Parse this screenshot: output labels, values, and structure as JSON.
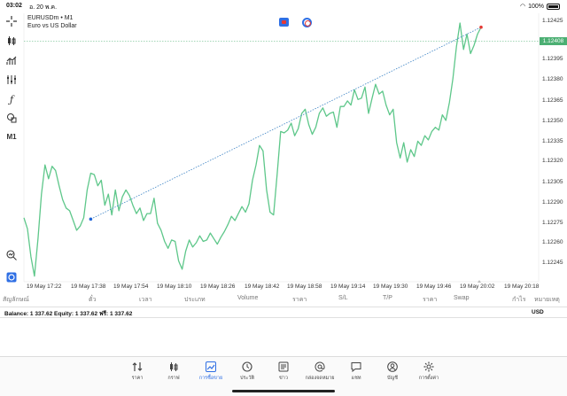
{
  "status_bar": {
    "time": "03:02",
    "date": "อ. 20 พ.ค.",
    "battery": "100%"
  },
  "symbol": {
    "name": "EURUSDm • M1",
    "description": "Euro vs US Dollar"
  },
  "toolbar": {
    "timeframe": "M1"
  },
  "colors": {
    "price_line": "#5ec78a",
    "accent": "#2f6fe4",
    "current_price_bg": "#4caf73",
    "trend_line": "#3b82c4"
  },
  "chart_data": {
    "type": "line",
    "price_axis_labels": [
      "1.12425",
      "1.12395",
      "1.12380",
      "1.12365",
      "1.12350",
      "1.12335",
      "1.12320",
      "1.12305",
      "1.12290",
      "1.12275",
      "1.12260",
      "1.12245"
    ],
    "current_price": "1.12408",
    "time_axis_labels": [
      "19 May 17:22",
      "19 May 17:38",
      "19 May 17:54",
      "19 May 18:10",
      "19 May 18:26",
      "19 May 18:42",
      "19 May 18:58",
      "19 May 19:14",
      "19 May 19:30",
      "19 May 19:46",
      "19 May 20:02",
      "19 May 20:18"
    ],
    "ylim": [
      1.12237,
      1.1243
    ],
    "series": [
      {
        "values": [
          1.12283,
          1.12275,
          1.12255,
          1.12241,
          1.12268,
          1.123,
          1.12321,
          1.12311,
          1.1232,
          1.12317,
          1.12306,
          1.12296,
          1.1229,
          1.12288,
          1.12281,
          1.12274,
          1.12277,
          1.12283,
          1.12303,
          1.12315,
          1.12314,
          1.12306,
          1.1231,
          1.12292,
          1.123,
          1.12285,
          1.12303,
          1.12288,
          1.12298,
          1.12303,
          1.12299,
          1.12292,
          1.12286,
          1.1229,
          1.12281,
          1.12286,
          1.12286,
          1.12297,
          1.12279,
          1.12274,
          1.12266,
          1.12261,
          1.12267,
          1.12266,
          1.12252,
          1.12246,
          1.12259,
          1.12267,
          1.12262,
          1.12265,
          1.1227,
          1.12266,
          1.12267,
          1.12272,
          1.12268,
          1.12264,
          1.12269,
          1.12273,
          1.12278,
          1.12284,
          1.12281,
          1.12286,
          1.12291,
          1.12287,
          1.12293,
          1.1231,
          1.12321,
          1.12335,
          1.12331,
          1.12303,
          1.12287,
          1.12285,
          1.12314,
          1.12345,
          1.12344,
          1.12346,
          1.12351,
          1.12342,
          1.12347,
          1.12358,
          1.12361,
          1.1235,
          1.12343,
          1.12348,
          1.12358,
          1.12362,
          1.12356,
          1.12358,
          1.12359,
          1.12348,
          1.12363,
          1.12363,
          1.12367,
          1.12364,
          1.12375,
          1.12368,
          1.12369,
          1.12377,
          1.12358,
          1.12369,
          1.12379,
          1.12372,
          1.12374,
          1.12364,
          1.12357,
          1.12361,
          1.12337,
          1.12326,
          1.12337,
          1.12323,
          1.12332,
          1.12327,
          1.12338,
          1.12335,
          1.12342,
          1.12339,
          1.12345,
          1.12348,
          1.12346,
          1.12357,
          1.12353,
          1.12366,
          1.12383,
          1.12406,
          1.12423,
          1.12404,
          1.12415,
          1.12401,
          1.12407,
          1.12415,
          1.1242
        ]
      }
    ],
    "trend_line": {
      "start": {
        "index": 19,
        "value": 1.12282
      },
      "end": {
        "index": 130,
        "value": 1.1242
      }
    },
    "grid": false
  },
  "table_header": {
    "symbol": "สัญลักษณ์",
    "type": "ตั๋ว",
    "price": "เวลา",
    "kind": "ประเภท",
    "volume": "Volume",
    "open_price": "ราคา",
    "sl": "S/L",
    "tp": "T/P",
    "current": "ราคา",
    "swap": "Swap",
    "profit": "กำไร",
    "comment": "หมายเหตุ"
  },
  "balance_row": {
    "summary": "Balance: 1 337.62 Equity: 1 337.62 ฟรี: 1 337.62",
    "currency": "USD"
  },
  "tabs": [
    {
      "label": "ราคา",
      "icon": "quotes-arrows-icon"
    },
    {
      "label": "กราฟ",
      "icon": "candles-icon"
    },
    {
      "label": "การซื้อขาย",
      "icon": "trade-chart-icon",
      "active": true
    },
    {
      "label": "ประวัติ",
      "icon": "history-clock-icon"
    },
    {
      "label": "ข่าว",
      "icon": "news-icon"
    },
    {
      "label": "กล่องจดหมาย",
      "icon": "mailbox-at-icon"
    },
    {
      "label": "แชท",
      "icon": "chat-icon"
    },
    {
      "label": "บัญชี",
      "icon": "account-user-icon"
    },
    {
      "label": "การตั้งค่า",
      "icon": "settings-gear-icon"
    }
  ]
}
